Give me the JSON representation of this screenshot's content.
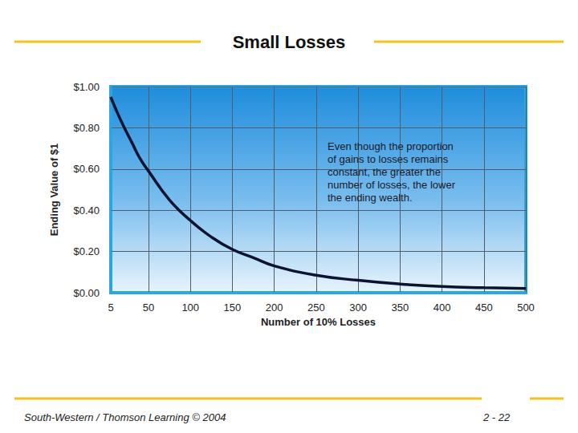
{
  "header": {
    "title": "Small Losses"
  },
  "footer": {
    "credit": "South-Western / Thomson Learning © 2004",
    "page": "2 - 22"
  },
  "chart_data": {
    "type": "line",
    "x_label": "Number of 10% Losses",
    "y_label": "Ending Value of $1",
    "annotation": "Even though the proportion\nof gains to losses remains\nconstant, the greater the\nnumber of losses, the lower\nthe ending wealth.",
    "x": [
      5,
      10,
      20,
      30,
      40,
      50,
      75,
      100,
      125,
      150,
      175,
      200,
      250,
      300,
      350,
      400,
      450,
      500
    ],
    "values": [
      0.95,
      0.9,
      0.81,
      0.73,
      0.65,
      0.59,
      0.45,
      0.35,
      0.27,
      0.21,
      0.17,
      0.13,
      0.085,
      0.06,
      0.042,
      0.03,
      0.024,
      0.02
    ],
    "color": "#0b1330",
    "marker": "none",
    "xlim": [
      5,
      500
    ],
    "xticks": [
      5,
      50,
      100,
      150,
      200,
      250,
      300,
      350,
      400,
      450,
      500
    ],
    "ylim": [
      0,
      1
    ],
    "yticks": [
      {
        "value": 0,
        "label": "$0.00"
      },
      {
        "value": 0.2,
        "label": "$0.20"
      },
      {
        "value": 0.4,
        "label": "$0.40"
      },
      {
        "value": 0.6,
        "label": "$0.60"
      },
      {
        "value": 0.8,
        "label": "$0.80"
      },
      {
        "value": 1,
        "label": "$1.00"
      }
    ],
    "grid": true
  }
}
